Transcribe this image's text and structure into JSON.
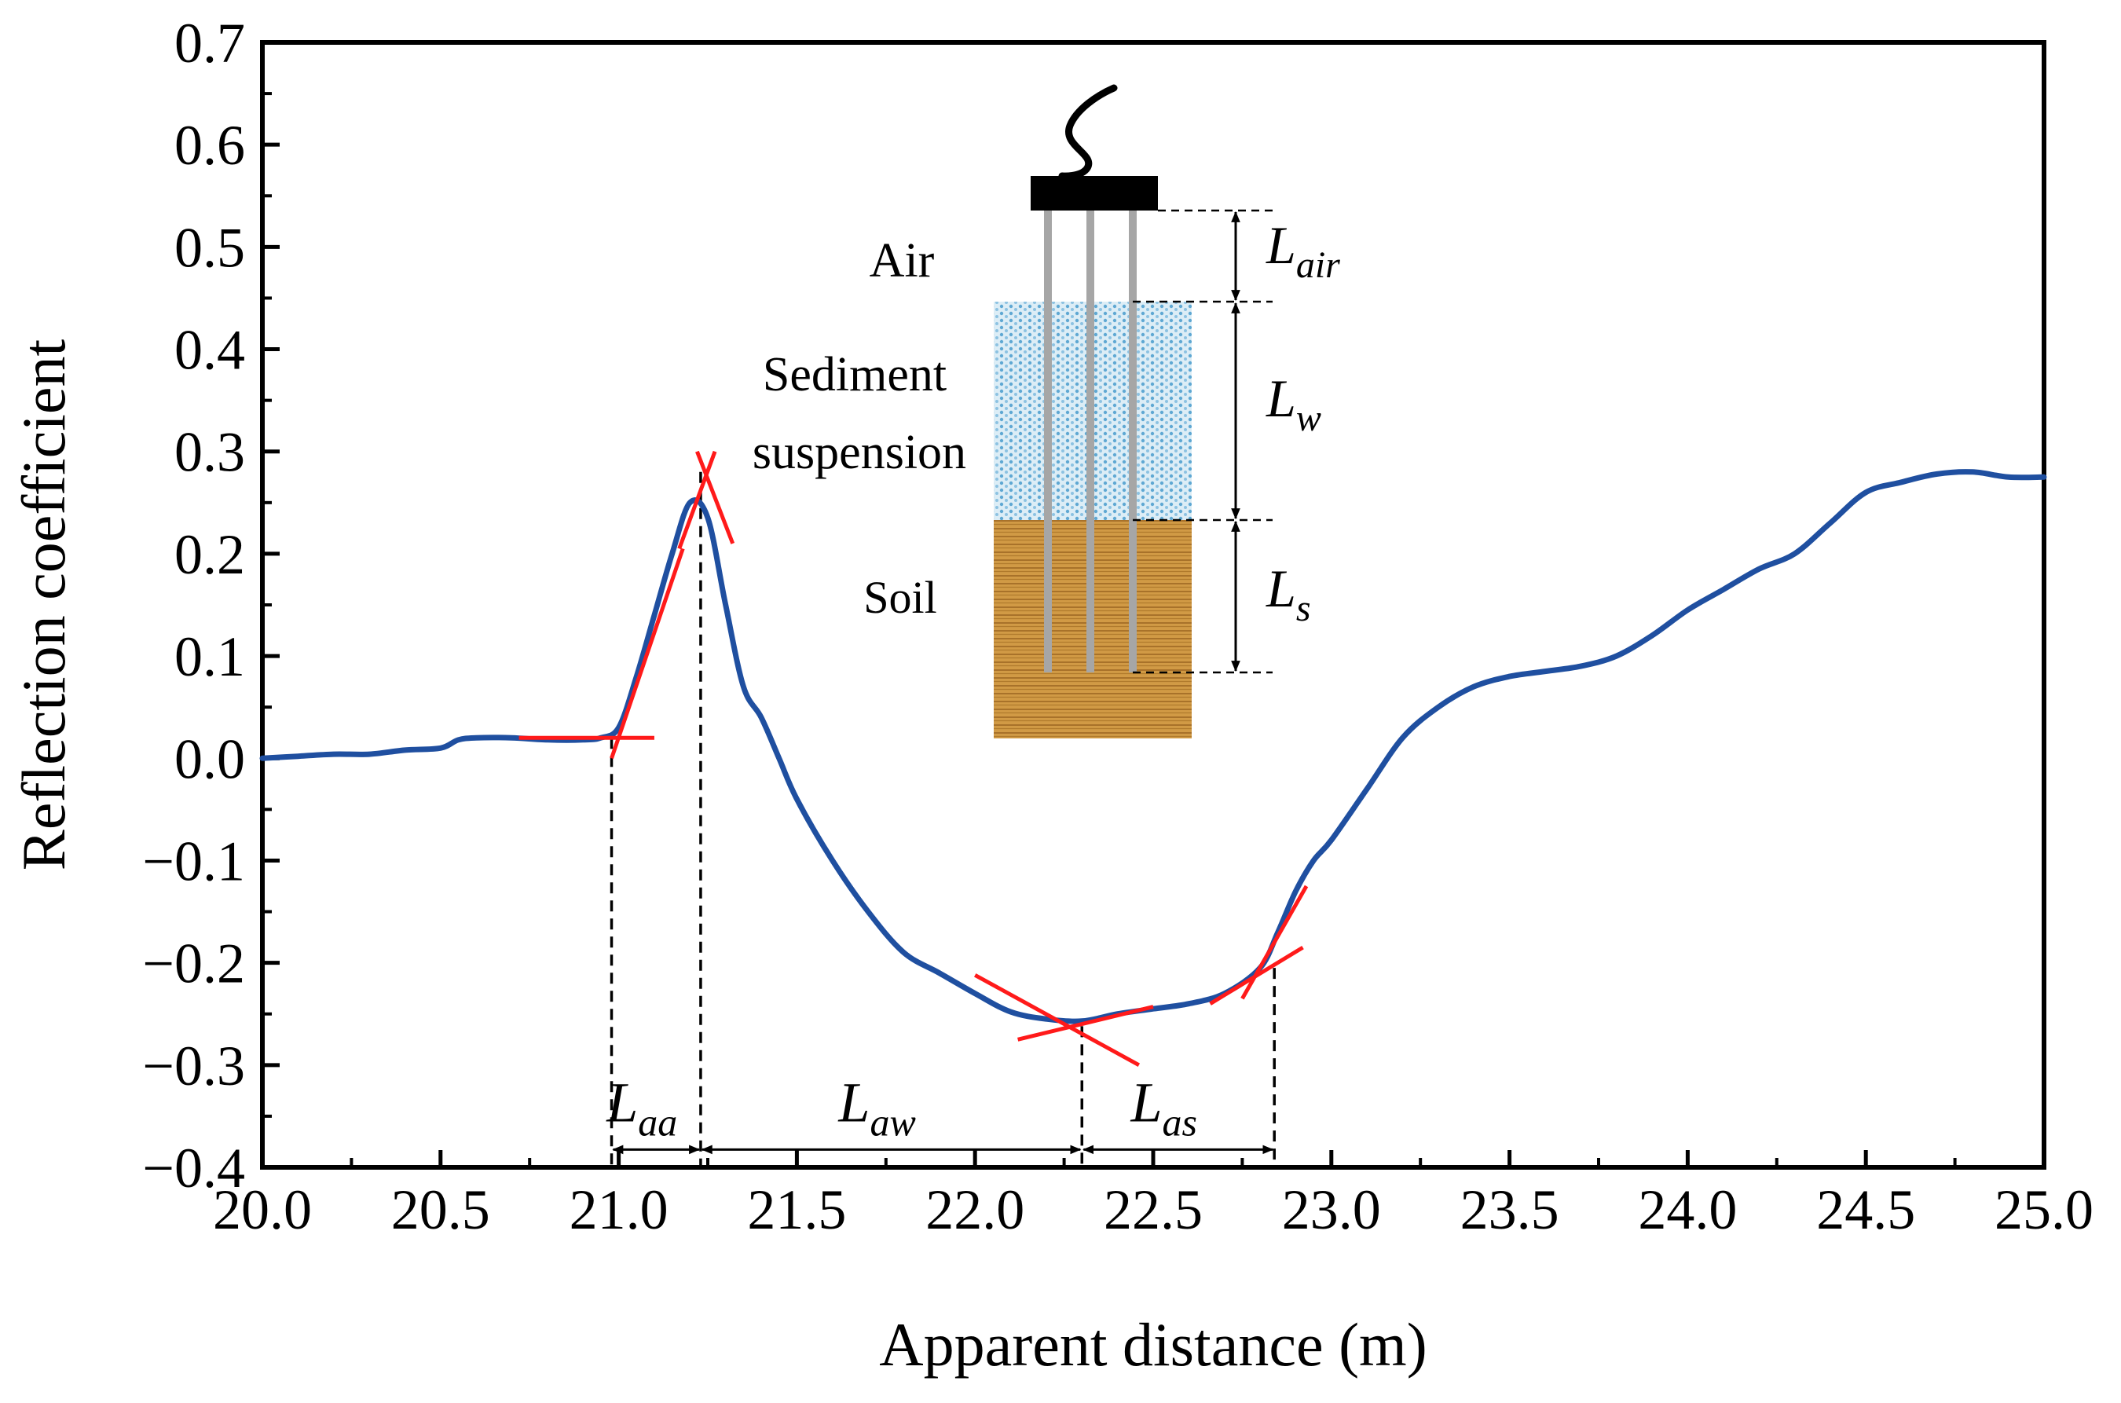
{
  "chart_data": {
    "type": "line",
    "title": "",
    "xlabel": "Apparent distance (m)",
    "ylabel": "Reflection coefficient",
    "xlim": [
      20.0,
      25.0
    ],
    "ylim": [
      -0.4,
      0.7
    ],
    "xticks": [
      20.0,
      20.5,
      21.0,
      21.5,
      22.0,
      22.5,
      23.0,
      23.5,
      24.0,
      24.5,
      25.0
    ],
    "xtick_labels": [
      "20.0",
      "20.5",
      "21.0",
      "21.5",
      "22.0",
      "22.5",
      "23.0",
      "23.5",
      "24.0",
      "24.5",
      "25.0"
    ],
    "yticks": [
      -0.4,
      -0.3,
      -0.2,
      -0.1,
      0.0,
      0.1,
      0.2,
      0.3,
      0.4,
      0.5,
      0.6,
      0.7
    ],
    "ytick_labels": [
      "−0.4",
      "−0.3",
      "−0.2",
      "−0.1",
      "0.0",
      "0.1",
      "0.2",
      "0.3",
      "0.4",
      "0.5",
      "0.6",
      "0.7"
    ],
    "grid": false,
    "colors": {
      "curve": "#1f4fa0",
      "tangent": "#ff1a1a",
      "axis": "#000000",
      "guide": "#000000"
    },
    "series": [
      {
        "name": "Reflection coefficient",
        "x": [
          20.0,
          20.1,
          20.2,
          20.3,
          20.4,
          20.5,
          20.55,
          20.6,
          20.7,
          20.8,
          20.9,
          20.95,
          21.0,
          21.05,
          21.1,
          21.15,
          21.2,
          21.25,
          21.3,
          21.35,
          21.4,
          21.45,
          21.5,
          21.6,
          21.7,
          21.8,
          21.9,
          22.0,
          22.1,
          22.2,
          22.3,
          22.4,
          22.5,
          22.6,
          22.7,
          22.8,
          22.85,
          22.9,
          22.95,
          23.0,
          23.1,
          23.2,
          23.3,
          23.4,
          23.5,
          23.6,
          23.7,
          23.8,
          23.9,
          24.0,
          24.1,
          24.2,
          24.3,
          24.4,
          24.5,
          24.6,
          24.7,
          24.8,
          24.9,
          25.0
        ],
        "y": [
          0.0,
          0.002,
          0.004,
          0.004,
          0.008,
          0.01,
          0.018,
          0.02,
          0.02,
          0.018,
          0.018,
          0.02,
          0.03,
          0.08,
          0.14,
          0.2,
          0.25,
          0.235,
          0.15,
          0.07,
          0.04,
          0.0,
          -0.04,
          -0.1,
          -0.15,
          -0.19,
          -0.21,
          -0.23,
          -0.248,
          -0.255,
          -0.257,
          -0.25,
          -0.245,
          -0.24,
          -0.23,
          -0.205,
          -0.17,
          -0.13,
          -0.1,
          -0.08,
          -0.03,
          0.02,
          0.05,
          0.07,
          0.08,
          0.085,
          0.09,
          0.1,
          0.12,
          0.145,
          0.165,
          0.185,
          0.2,
          0.23,
          0.26,
          0.27,
          0.278,
          0.28,
          0.275,
          0.275
        ]
      }
    ],
    "tangent_lines": [
      {
        "x": [
          20.72,
          21.1
        ],
        "y": [
          0.02,
          0.02
        ]
      },
      {
        "x": [
          20.98,
          21.18
        ],
        "y": [
          0.0,
          0.205
        ]
      },
      {
        "x": [
          21.17,
          21.27
        ],
        "y": [
          0.205,
          0.3
        ]
      },
      {
        "x": [
          21.22,
          21.32
        ],
        "y": [
          0.3,
          0.21
        ]
      },
      {
        "x": [
          22.0,
          22.46
        ],
        "y": [
          -0.212,
          -0.3
        ]
      },
      {
        "x": [
          22.12,
          22.5
        ],
        "y": [
          -0.275,
          -0.243
        ]
      },
      {
        "x": [
          22.66,
          22.92
        ],
        "y": [
          -0.24,
          -0.185
        ]
      },
      {
        "x": [
          22.75,
          22.93
        ],
        "y": [
          -0.235,
          -0.125
        ]
      }
    ],
    "guide_lines": [
      {
        "x": 20.98,
        "y_from": 0.02,
        "y_to": -0.4
      },
      {
        "x": 21.23,
        "y_from": 0.28,
        "y_to": -0.4
      },
      {
        "x": 22.3,
        "y_from": -0.262,
        "y_to": -0.4
      },
      {
        "x": 22.84,
        "y_from": -0.205,
        "y_to": -0.4
      }
    ],
    "spans": [
      {
        "id": "aa",
        "base": "L",
        "sub": "aa",
        "from": 20.98,
        "to": 21.23,
        "y": -0.335
      },
      {
        "id": "aw",
        "base": "L",
        "sub": "aw",
        "from": 21.23,
        "to": 22.3,
        "y": -0.335
      },
      {
        "id": "as",
        "base": "L",
        "sub": "as",
        "from": 22.3,
        "to": 22.84,
        "y": -0.335
      }
    ]
  },
  "inset": {
    "labels": {
      "air": "Air",
      "sediment_line1": "Sediment",
      "sediment_line2": "suspension",
      "soil": "Soil"
    },
    "dims": [
      {
        "id": "air",
        "base": "L",
        "sub": "air"
      },
      {
        "id": "w",
        "base": "L",
        "sub": "w"
      },
      {
        "id": "s",
        "base": "L",
        "sub": "s"
      }
    ],
    "colors": {
      "probe_head": "#000000",
      "rod": "#a6a6a6",
      "suspension": "#cfe6f3",
      "suspension_dots": "#5fa8d3",
      "soil": "#c8913a",
      "soil_lines": "#8a5a1a"
    }
  }
}
